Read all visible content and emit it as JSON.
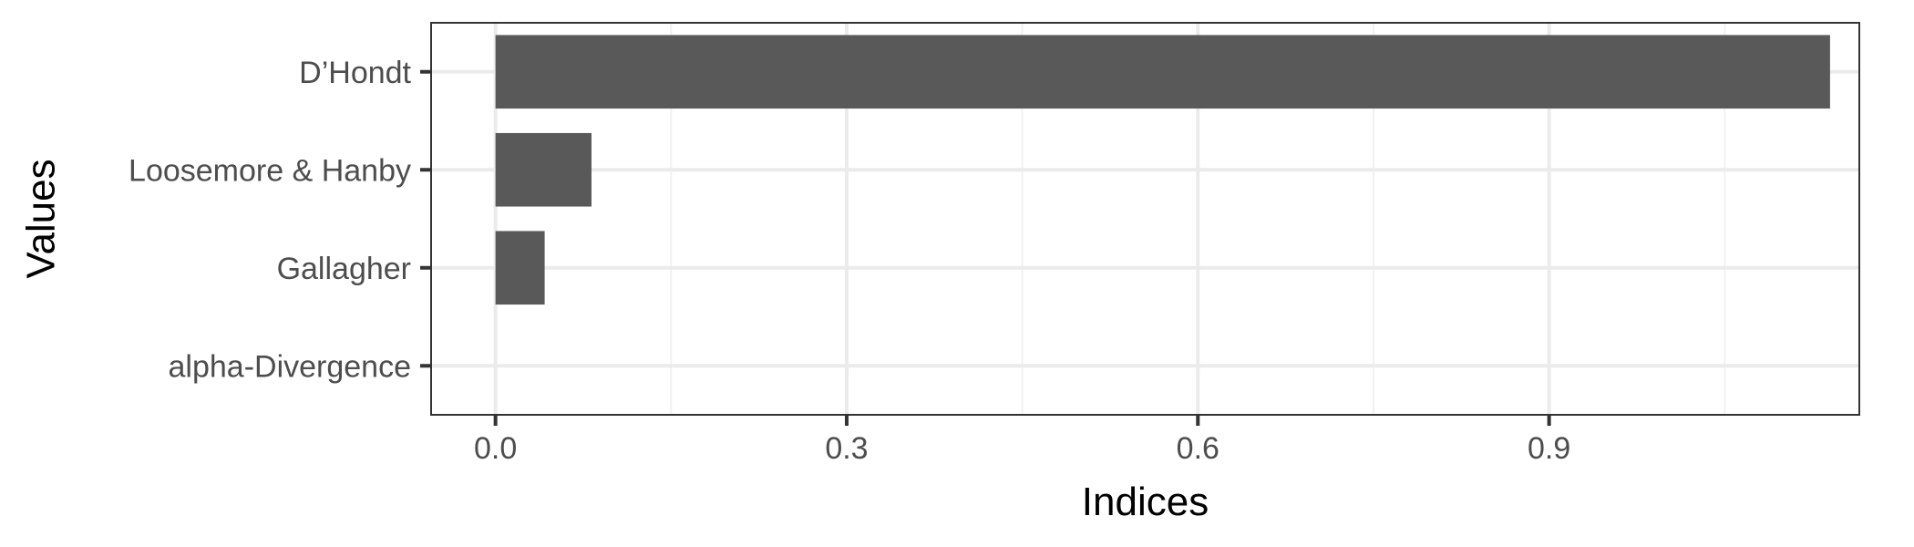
{
  "chart_data": {
    "type": "bar",
    "orientation": "horizontal",
    "categories": [
      "D’Hondt",
      "Loosemore & Hanby",
      "Gallagher",
      "alpha-Divergence"
    ],
    "values": [
      1.14,
      0.082,
      0.042,
      0.0
    ],
    "xlabel": "Indices",
    "ylabel": "Values",
    "xlim": [
      -0.055,
      1.165
    ],
    "xticks": [
      0.0,
      0.3,
      0.6,
      0.9
    ],
    "xtick_labels": [
      "0.0",
      "0.3",
      "0.6",
      "0.9"
    ],
    "grid": true,
    "colors": {
      "bar": "#595959",
      "grid_major": "#ebebeb",
      "grid_minor": "#f2f2f2",
      "panel_border": "#333333",
      "tick_text": "#4d4d4d",
      "title_text": "#000000"
    }
  }
}
